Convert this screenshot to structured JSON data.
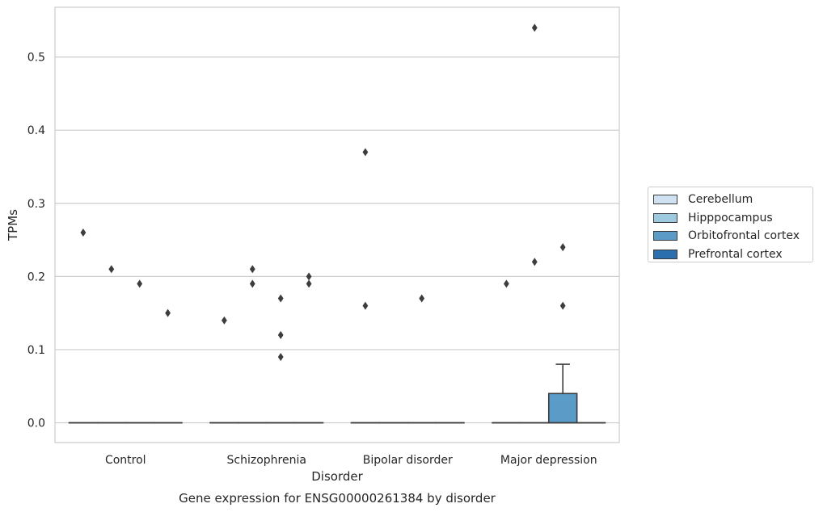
{
  "chart_data": {
    "type": "boxplot",
    "title": "Gene expression for ENSG00000261384 by disorder",
    "xlabel": "Disorder",
    "ylabel": "TPMs",
    "ylim": [
      -0.027,
      0.568
    ],
    "yticks": [
      0.0,
      0.1,
      0.2,
      0.3,
      0.4,
      0.5
    ],
    "ytick_labels": [
      "0.0",
      "0.1",
      "0.2",
      "0.3",
      "0.4",
      "0.5"
    ],
    "grid": "horizontal",
    "legend_position": "right",
    "categories": [
      "Control",
      "Schizophrenia",
      "Bipolar disorder",
      "Major depression"
    ],
    "series": [
      {
        "name": "Cerebellum",
        "color": "#d0e1f2",
        "boxes": [
          {
            "q1": 0,
            "median": 0,
            "q3": 0,
            "whisker_low": 0,
            "whisker_high": 0,
            "outliers": [
              0.26
            ]
          },
          {
            "q1": 0,
            "median": 0,
            "q3": 0,
            "whisker_low": 0,
            "whisker_high": 0,
            "outliers": [
              0.14
            ]
          },
          {
            "q1": 0,
            "median": 0,
            "q3": 0,
            "whisker_low": 0,
            "whisker_high": 0,
            "outliers": [
              0.37,
              0.16
            ]
          },
          {
            "q1": 0,
            "median": 0,
            "q3": 0,
            "whisker_low": 0,
            "whisker_high": 0,
            "outliers": [
              0.19
            ]
          }
        ]
      },
      {
        "name": "Hipppocampus",
        "color": "#9ecae1",
        "boxes": [
          {
            "q1": 0,
            "median": 0,
            "q3": 0,
            "whisker_low": 0,
            "whisker_high": 0,
            "outliers": [
              0.21
            ]
          },
          {
            "q1": 0,
            "median": 0,
            "q3": 0,
            "whisker_low": 0,
            "whisker_high": 0,
            "outliers": [
              0.21,
              0.19
            ]
          },
          {
            "q1": 0,
            "median": 0,
            "q3": 0,
            "whisker_low": 0,
            "whisker_high": 0,
            "outliers": []
          },
          {
            "q1": 0,
            "median": 0,
            "q3": 0,
            "whisker_low": 0,
            "whisker_high": 0,
            "outliers": [
              0.54,
              0.22
            ]
          }
        ]
      },
      {
        "name": "Orbitofrontal cortex",
        "color": "#5a9bc8",
        "boxes": [
          {
            "q1": 0,
            "median": 0,
            "q3": 0,
            "whisker_low": 0,
            "whisker_high": 0,
            "outliers": [
              0.19
            ]
          },
          {
            "q1": 0,
            "median": 0,
            "q3": 0,
            "whisker_low": 0,
            "whisker_high": 0,
            "outliers": [
              0.17,
              0.12,
              0.09
            ]
          },
          {
            "q1": 0,
            "median": 0,
            "q3": 0,
            "whisker_low": 0,
            "whisker_high": 0,
            "outliers": [
              0.17
            ]
          },
          {
            "q1": 0,
            "median": 0,
            "q3": 0.04,
            "whisker_low": 0,
            "whisker_high": 0.08,
            "outliers": [
              0.24,
              0.16
            ]
          }
        ]
      },
      {
        "name": "Prefrontal cortex",
        "color": "#2b6fae",
        "boxes": [
          {
            "q1": 0,
            "median": 0,
            "q3": 0,
            "whisker_low": 0,
            "whisker_high": 0,
            "outliers": [
              0.15
            ]
          },
          {
            "q1": 0,
            "median": 0,
            "q3": 0,
            "whisker_low": 0,
            "whisker_high": 0,
            "outliers": [
              0.2,
              0.19
            ]
          },
          {
            "q1": 0,
            "median": 0,
            "q3": 0,
            "whisker_low": 0,
            "whisker_high": 0,
            "outliers": []
          },
          {
            "q1": 0,
            "median": 0,
            "q3": 0,
            "whisker_low": 0,
            "whisker_high": 0,
            "outliers": []
          }
        ]
      }
    ]
  }
}
